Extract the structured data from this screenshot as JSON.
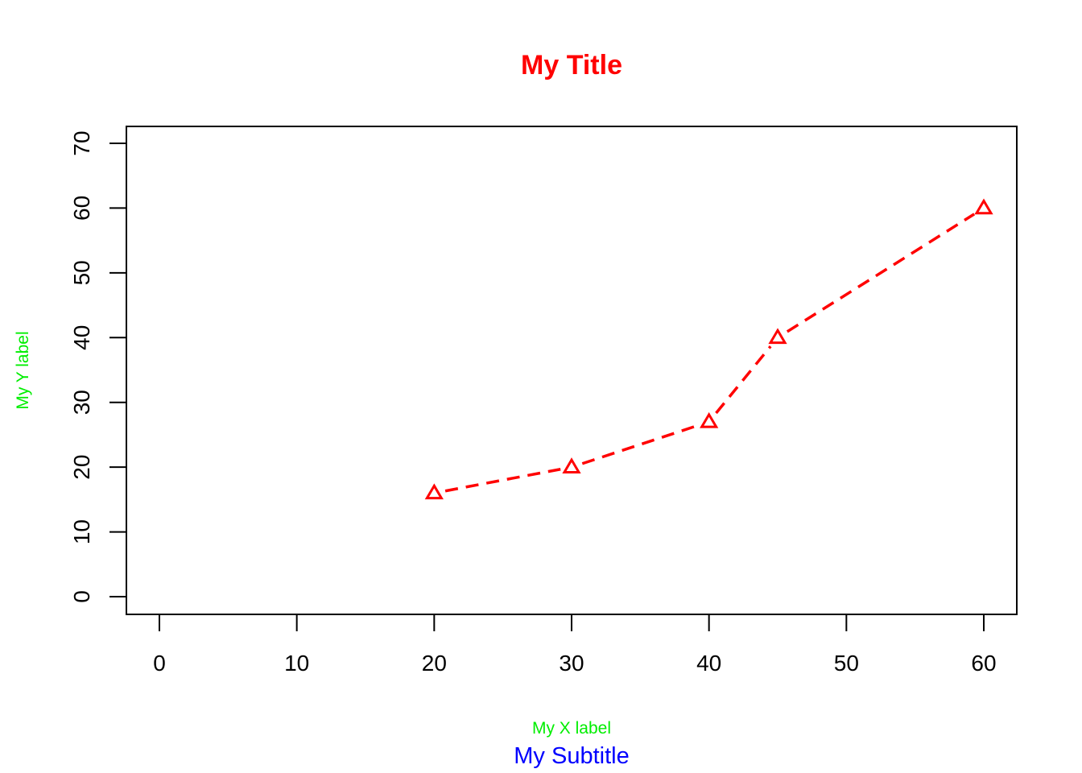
{
  "chart_data": {
    "type": "line",
    "title": "My Title",
    "subtitle": "My Subtitle",
    "xlabel": "My X label",
    "ylabel": "My Y label",
    "xlim": [
      0,
      60
    ],
    "ylim": [
      0,
      70
    ],
    "x_ticks": [
      "0",
      "10",
      "20",
      "30",
      "40",
      "50",
      "60"
    ],
    "y_ticks": [
      "0",
      "10",
      "20",
      "30",
      "40",
      "50",
      "60",
      "70"
    ],
    "series": [
      {
        "x": [
          20,
          30,
          40,
          45,
          60
        ],
        "y": [
          16,
          20,
          27,
          40,
          60
        ],
        "line_style": "dashed",
        "marker": "triangle",
        "color": "#ff0000"
      }
    ],
    "grid": false,
    "legend": "none",
    "colors": {
      "title": "#ff0000",
      "axis_labels": "#00ee00",
      "subtitle": "#0000ff",
      "series": "#ff0000"
    }
  }
}
